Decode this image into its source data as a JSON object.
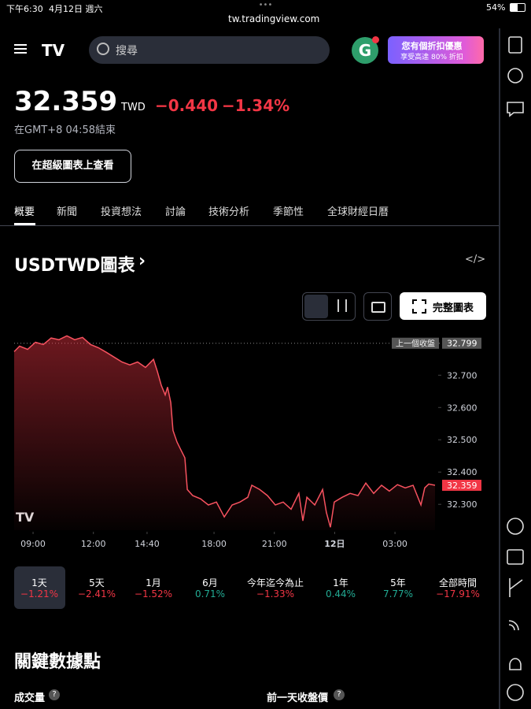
{
  "status_bar": {
    "time": "下午6:30",
    "date": "4月12日 週六",
    "url": "tw.tradingview.com",
    "battery": "54%"
  },
  "header": {
    "search_placeholder": "搜尋",
    "avatar": "G",
    "promo_title": "您有個折扣優惠",
    "promo_subtitle": "享受高達 80% 折扣"
  },
  "quote": {
    "price": "32.359",
    "currency": "TWD",
    "change": "−0.440",
    "change_percent": "−1.34%",
    "status": "在GMT+8 04:58結束",
    "button": "在超級圖表上查看"
  },
  "tabs": [
    "概要",
    "新聞",
    "投資想法",
    "討論",
    "技術分析",
    "季節性",
    "全球財經日曆"
  ],
  "chart_heading": "USDTWD圖表",
  "full_chart_button": "完整圖表",
  "chart_data": {
    "type": "line",
    "color": "#f7525f",
    "x": [
      8.06,
      8.33,
      8.73,
      9.12,
      9.51,
      9.9,
      10.29,
      10.68,
      11.07,
      11.46,
      11.86,
      12.25,
      12.64,
      13.03,
      13.42,
      13.81,
      14.2,
      14.59,
      14.99,
      15.18,
      15.38,
      15.57,
      15.69,
      15.85,
      15.96,
      16.16,
      16.36,
      16.55,
      16.67,
      16.94,
      17.33,
      17.72,
      18.12,
      18.51,
      18.9,
      19.29,
      19.68,
      19.88,
      20.27,
      20.66,
      21.05,
      21.44,
      21.83,
      22.22,
      22.42,
      22.62,
      23.01,
      23.4,
      23.59,
      23.79,
      23.98,
      24.38,
      24.77,
      25.16,
      25.55,
      25.94,
      26.33,
      26.72,
      27.12,
      27.51,
      27.9,
      28.29,
      28.48,
      28.68,
      28.99
    ],
    "values": [
      32.773,
      32.79,
      32.78,
      32.802,
      32.795,
      32.815,
      32.81,
      32.822,
      32.81,
      32.817,
      32.795,
      32.785,
      32.771,
      32.756,
      32.741,
      32.732,
      32.741,
      32.724,
      32.749,
      32.712,
      32.668,
      32.639,
      32.663,
      32.615,
      32.529,
      32.493,
      32.468,
      32.444,
      32.346,
      32.327,
      32.317,
      32.298,
      32.307,
      32.261,
      32.298,
      32.307,
      32.322,
      32.359,
      32.346,
      32.327,
      32.298,
      32.307,
      32.285,
      32.334,
      32.249,
      32.322,
      32.298,
      32.346,
      32.275,
      32.229,
      32.307,
      32.322,
      32.334,
      32.327,
      32.366,
      32.334,
      32.359,
      32.341,
      32.361,
      32.351,
      32.359,
      32.298,
      32.351,
      32.363,
      32.359
    ],
    "xlim": [
      8.06,
      29.07
    ],
    "xticks": [
      {
        "value": 9,
        "label": "09:00"
      },
      {
        "value": 12,
        "label": "12:00"
      },
      {
        "value": 14.67,
        "label": "14:40"
      },
      {
        "value": 18,
        "label": "18:00"
      },
      {
        "value": 21,
        "label": "21:00"
      },
      {
        "value": 24,
        "label": "12日"
      },
      {
        "value": 27,
        "label": "03:00"
      }
    ],
    "ylim": [
      32.22,
      32.83
    ],
    "yticks": [
      {
        "value": 32.3,
        "label": "32.300"
      },
      {
        "value": 32.4,
        "label": "32.400"
      },
      {
        "value": 32.5,
        "label": "32.500"
      },
      {
        "value": 32.6,
        "label": "32.600"
      },
      {
        "value": 32.7,
        "label": "32.700"
      }
    ],
    "previous_close": {
      "label": "上一個收盤",
      "value": 32.799
    }
  },
  "periods": [
    {
      "label": "1天",
      "change": "−1.21%"
    },
    {
      "label": "5天",
      "change": "−2.41%"
    },
    {
      "label": "1月",
      "change": "−1.52%"
    },
    {
      "label": "6月",
      "change": "0.71%"
    },
    {
      "label": "今年迄今為止",
      "change": "−1.33%"
    },
    {
      "label": "1年",
      "change": "0.44%"
    },
    {
      "label": "5年",
      "change": "7.77%"
    },
    {
      "label": "全部時間",
      "change": "−17.91%"
    }
  ],
  "key_stats": {
    "title": "關鍵數據點",
    "items": [
      "成交量",
      "前一天收盤價"
    ]
  }
}
